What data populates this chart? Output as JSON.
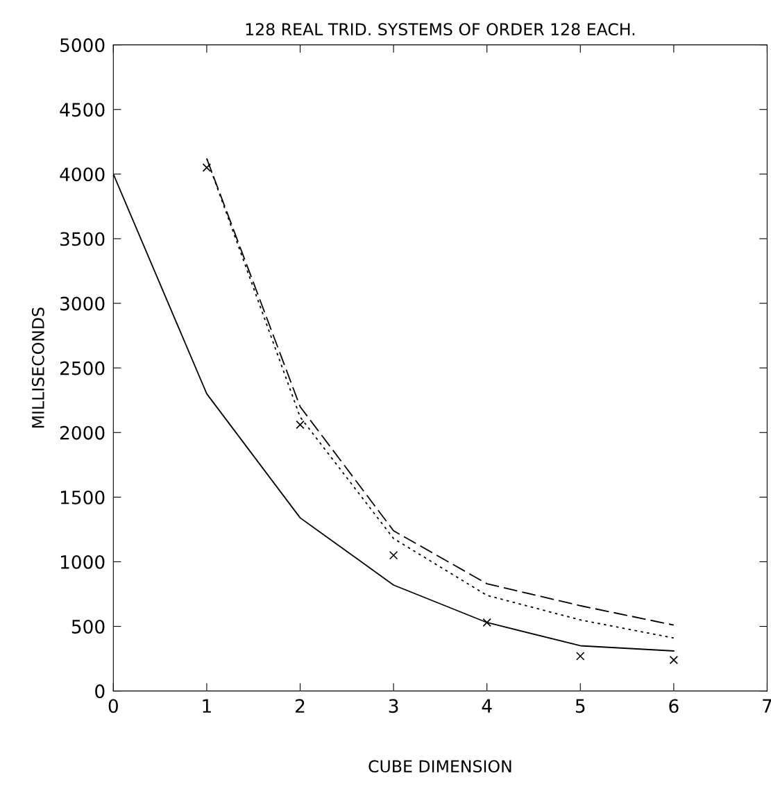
{
  "chart_data": {
    "type": "line",
    "title": "128 REAL TRID. SYSTEMS OF ORDER 128 EACH.",
    "xlabel": "CUBE DIMENSION",
    "ylabel": "MILLISECONDS",
    "xlim": [
      0,
      7
    ],
    "xticks": [
      0,
      1,
      2,
      3,
      4,
      5,
      6,
      7
    ],
    "ylim": [
      0,
      5000
    ],
    "yticks": [
      0,
      500,
      1000,
      1500,
      2000,
      2500,
      3000,
      3500,
      4000,
      4500,
      5000
    ],
    "grid": false,
    "legend": false,
    "series": [
      {
        "color": "#000000",
        "line_style": "solid",
        "marker": "none",
        "x": [
          0,
          1,
          2,
          3,
          4,
          5,
          6
        ],
        "values": [
          4000,
          2300,
          1340,
          820,
          530,
          350,
          310
        ]
      },
      {
        "color": "#000000",
        "line_style": "dashed",
        "marker": "none",
        "x": [
          1,
          2,
          3,
          4,
          5,
          6
        ],
        "values": [
          4120,
          2200,
          1240,
          830,
          660,
          510
        ]
      },
      {
        "color": "#000000",
        "line_style": "dotted",
        "marker": "none",
        "x": [
          1,
          2,
          3,
          4,
          5,
          6
        ],
        "values": [
          4120,
          2120,
          1180,
          740,
          550,
          410
        ]
      },
      {
        "type": "scatter",
        "color": "#000000",
        "marker": "cross",
        "x": [
          1,
          2,
          3,
          4,
          5,
          6
        ],
        "values": [
          4050,
          2060,
          1050,
          530,
          270,
          240
        ]
      }
    ]
  }
}
